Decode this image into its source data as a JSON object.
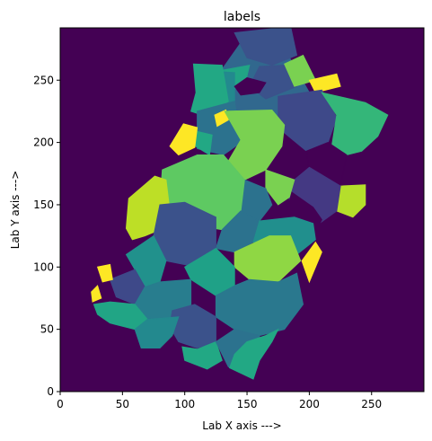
{
  "chart_data": {
    "type": "heatmap",
    "title": "labels",
    "xlabel": "Lab X axis --->",
    "ylabel": "Lab Y axis --->",
    "xlim": [
      0,
      292
    ],
    "ylim": [
      0,
      292
    ],
    "xticks": [
      0,
      50,
      100,
      150,
      200,
      250
    ],
    "yticks": [
      0,
      50,
      100,
      150,
      200,
      250
    ],
    "colormap": "viridis",
    "background_color": "#440154",
    "regions": [
      {
        "color": "#31688e",
        "polygon": [
          [
            121,
            246
          ],
          [
            150,
            287
          ],
          [
            183,
            270
          ],
          [
            200,
            240
          ],
          [
            175,
            205
          ],
          [
            140,
            200
          ]
        ]
      },
      {
        "color": "#3b528b",
        "polygon": [
          [
            140,
            288
          ],
          [
            185,
            293
          ],
          [
            190,
            270
          ],
          [
            170,
            262
          ],
          [
            150,
            268
          ]
        ]
      },
      {
        "color": "#21a585",
        "polygon": [
          [
            130,
            258
          ],
          [
            152,
            262
          ],
          [
            148,
            245
          ],
          [
            128,
            240
          ]
        ]
      },
      {
        "color": "#23898e",
        "polygon": [
          [
            112,
            258
          ],
          [
            140,
            256
          ],
          [
            140,
            230
          ],
          [
            122,
            228
          ],
          [
            112,
            240
          ]
        ]
      },
      {
        "color": "#22a884",
        "polygon": [
          [
            107,
            263
          ],
          [
            130,
            262
          ],
          [
            135,
            233
          ],
          [
            120,
            220
          ],
          [
            105,
            225
          ],
          [
            109,
            240
          ]
        ]
      },
      {
        "color": "#3b528b",
        "polygon": [
          [
            160,
            261
          ],
          [
            180,
            262
          ],
          [
            190,
            245
          ],
          [
            165,
            235
          ],
          [
            152,
            245
          ]
        ]
      },
      {
        "color": "#7ad151",
        "polygon": [
          [
            180,
            263
          ],
          [
            195,
            270
          ],
          [
            205,
            250
          ],
          [
            188,
            245
          ]
        ]
      },
      {
        "color": "#fde725",
        "polygon": [
          [
            200,
            250
          ],
          [
            222,
            255
          ],
          [
            225,
            245
          ],
          [
            205,
            240
          ]
        ]
      },
      {
        "color": "#3e4989",
        "polygon": [
          [
            175,
            237
          ],
          [
            210,
            242
          ],
          [
            222,
            220
          ],
          [
            215,
            200
          ],
          [
            195,
            192
          ],
          [
            175,
            205
          ]
        ]
      },
      {
        "color": "#34b679",
        "polygon": [
          [
            210,
            240
          ],
          [
            245,
            232
          ],
          [
            263,
            222
          ],
          [
            255,
            205
          ],
          [
            242,
            193
          ],
          [
            230,
            190
          ],
          [
            218,
            197
          ],
          [
            222,
            222
          ]
        ]
      },
      {
        "color": "#440154",
        "polygon": [
          [
            195,
            192
          ],
          [
            215,
            200
          ],
          [
            230,
            190
          ],
          [
            225,
            165
          ],
          [
            208,
            170
          ],
          [
            200,
            180
          ]
        ]
      },
      {
        "color": "#440154",
        "polygon": [
          [
            170,
            215
          ],
          [
            198,
            192
          ],
          [
            200,
            175
          ],
          [
            178,
            168
          ],
          [
            165,
            178
          ],
          [
            160,
            200
          ]
        ]
      },
      {
        "color": "#2c728e",
        "polygon": [
          [
            110,
            225
          ],
          [
            140,
            233
          ],
          [
            145,
            200
          ],
          [
            131,
            190
          ],
          [
            110,
            195
          ]
        ]
      },
      {
        "color": "#22a884",
        "polygon": [
          [
            105,
            210
          ],
          [
            122,
            206
          ],
          [
            120,
            190
          ],
          [
            107,
            198
          ]
        ]
      },
      {
        "color": "#fde725",
        "polygon": [
          [
            99,
            215
          ],
          [
            110,
            212
          ],
          [
            108,
            196
          ],
          [
            95,
            190
          ],
          [
            88,
            197
          ]
        ]
      },
      {
        "color": "#fde725",
        "polygon": [
          [
            124,
            222
          ],
          [
            133,
            226
          ],
          [
            135,
            218
          ],
          [
            126,
            213
          ]
        ]
      },
      {
        "color": "#7ad151",
        "polygon": [
          [
            132,
            225
          ],
          [
            170,
            226
          ],
          [
            180,
            214
          ],
          [
            178,
            197
          ],
          [
            165,
            178
          ],
          [
            148,
            170
          ],
          [
            135,
            185
          ],
          [
            145,
            202
          ]
        ]
      },
      {
        "color": "#b5de2b",
        "polygon": [
          [
            225,
            165
          ],
          [
            245,
            166
          ],
          [
            245,
            150
          ],
          [
            235,
            140
          ],
          [
            222,
            145
          ]
        ]
      },
      {
        "color": "#443983",
        "polygon": [
          [
            200,
            180
          ],
          [
            225,
            165
          ],
          [
            222,
            145
          ],
          [
            208,
            135
          ],
          [
            188,
            140
          ],
          [
            183,
            158
          ],
          [
            188,
            170
          ]
        ]
      },
      {
        "color": "#7ad151",
        "polygon": [
          [
            165,
            178
          ],
          [
            188,
            170
          ],
          [
            184,
            156
          ],
          [
            175,
            150
          ],
          [
            165,
            163
          ]
        ]
      },
      {
        "color": "#2c728e",
        "polygon": [
          [
            148,
            170
          ],
          [
            165,
            163
          ],
          [
            170,
            150
          ],
          [
            160,
            137
          ],
          [
            145,
            145
          ]
        ]
      },
      {
        "color": "#5ec962",
        "polygon": [
          [
            110,
            190
          ],
          [
            131,
            190
          ],
          [
            148,
            170
          ],
          [
            145,
            145
          ],
          [
            130,
            130
          ],
          [
            100,
            135
          ],
          [
            80,
            150
          ],
          [
            82,
            178
          ]
        ]
      },
      {
        "color": "#bddf26",
        "polygon": [
          [
            76,
            173
          ],
          [
            85,
            170
          ],
          [
            88,
            145
          ],
          [
            80,
            130
          ],
          [
            68,
            125
          ],
          [
            58,
            122
          ],
          [
            53,
            131
          ],
          [
            55,
            155
          ]
        ]
      },
      {
        "color": "#2c728e",
        "polygon": [
          [
            130,
            130
          ],
          [
            145,
            145
          ],
          [
            160,
            137
          ],
          [
            155,
            120
          ],
          [
            140,
            112
          ],
          [
            125,
            115
          ]
        ]
      },
      {
        "color": "#440154",
        "polygon": [
          [
            186,
            160
          ],
          [
            203,
            148
          ],
          [
            210,
            138
          ],
          [
            205,
            128
          ],
          [
            188,
            128
          ],
          [
            180,
            138
          ]
        ]
      },
      {
        "color": "#218f8d",
        "polygon": [
          [
            160,
            137
          ],
          [
            188,
            140
          ],
          [
            203,
            135
          ],
          [
            205,
            122
          ],
          [
            190,
            110
          ],
          [
            170,
            110
          ],
          [
            155,
            120
          ]
        ]
      },
      {
        "color": "#3b528b",
        "polygon": [
          [
            80,
            150
          ],
          [
            100,
            152
          ],
          [
            125,
            140
          ],
          [
            125,
            115
          ],
          [
            110,
            100
          ],
          [
            85,
            105
          ],
          [
            75,
            125
          ]
        ]
      },
      {
        "color": "#21918c",
        "polygon": [
          [
            75,
            125
          ],
          [
            85,
            105
          ],
          [
            80,
            88
          ],
          [
            68,
            84
          ],
          [
            60,
            98
          ],
          [
            53,
            110
          ]
        ]
      },
      {
        "color": "#8fd744",
        "polygon": [
          [
            140,
            112
          ],
          [
            168,
            125
          ],
          [
            185,
            125
          ],
          [
            193,
            105
          ],
          [
            175,
            88
          ],
          [
            152,
            90
          ],
          [
            140,
            100
          ]
        ]
      },
      {
        "color": "#fde725",
        "polygon": [
          [
            194,
            105
          ],
          [
            205,
            120
          ],
          [
            210,
            112
          ],
          [
            200,
            88
          ]
        ]
      },
      {
        "color": "#1fa187",
        "polygon": [
          [
            100,
            100
          ],
          [
            125,
            115
          ],
          [
            140,
            100
          ],
          [
            140,
            85
          ],
          [
            125,
            77
          ],
          [
            105,
            90
          ]
        ]
      },
      {
        "color": "#2a788e",
        "polygon": [
          [
            125,
            77
          ],
          [
            140,
            85
          ],
          [
            152,
            90
          ],
          [
            175,
            88
          ],
          [
            190,
            95
          ],
          [
            195,
            70
          ],
          [
            180,
            50
          ],
          [
            160,
            45
          ],
          [
            140,
            50
          ],
          [
            125,
            60
          ]
        ]
      },
      {
        "color": "#3e4989",
        "polygon": [
          [
            40,
            90
          ],
          [
            60,
            98
          ],
          [
            68,
            84
          ],
          [
            60,
            70
          ],
          [
            45,
            76
          ]
        ]
      },
      {
        "color": "#287d8e",
        "polygon": [
          [
            60,
            70
          ],
          [
            68,
            84
          ],
          [
            80,
            88
          ],
          [
            105,
            90
          ],
          [
            105,
            70
          ],
          [
            95,
            60
          ],
          [
            70,
            58
          ]
        ]
      },
      {
        "color": "#fde725",
        "polygon": [
          [
            30,
            100
          ],
          [
            40,
            102
          ],
          [
            42,
            90
          ],
          [
            34,
            88
          ]
        ]
      },
      {
        "color": "#fde725",
        "polygon": [
          [
            26,
            72
          ],
          [
            33,
            75
          ],
          [
            30,
            85
          ],
          [
            25,
            80
          ]
        ]
      },
      {
        "color": "#21a585",
        "polygon": [
          [
            27,
            70
          ],
          [
            40,
            72
          ],
          [
            60,
            70
          ],
          [
            70,
            58
          ],
          [
            60,
            50
          ],
          [
            40,
            55
          ],
          [
            30,
            62
          ]
        ]
      },
      {
        "color": "#3b528b",
        "polygon": [
          [
            90,
            65
          ],
          [
            108,
            70
          ],
          [
            125,
            60
          ],
          [
            125,
            40
          ],
          [
            110,
            35
          ],
          [
            95,
            40
          ],
          [
            88,
            52
          ]
        ]
      },
      {
        "color": "#23898e",
        "polygon": [
          [
            70,
            58
          ],
          [
            95,
            60
          ],
          [
            90,
            45
          ],
          [
            80,
            35
          ],
          [
            65,
            35
          ],
          [
            60,
            50
          ]
        ]
      },
      {
        "color": "#22a884",
        "polygon": [
          [
            98,
            36
          ],
          [
            110,
            34
          ],
          [
            125,
            40
          ],
          [
            130,
            25
          ],
          [
            118,
            18
          ],
          [
            100,
            25
          ]
        ]
      },
      {
        "color": "#2c728e",
        "polygon": [
          [
            125,
            40
          ],
          [
            140,
            50
          ],
          [
            160,
            45
          ],
          [
            160,
            25
          ],
          [
            145,
            15
          ],
          [
            135,
            20
          ],
          [
            130,
            30
          ]
        ]
      },
      {
        "color": "#22a884",
        "polygon": [
          [
            136,
            19
          ],
          [
            155,
            10
          ],
          [
            160,
            25
          ],
          [
            170,
            40
          ],
          [
            175,
            50
          ],
          [
            165,
            45
          ],
          [
            150,
            40
          ],
          [
            140,
            30
          ]
        ]
      },
      {
        "color": "#440154",
        "polygon": [
          [
            140,
            245
          ],
          [
            145,
            238
          ],
          [
            160,
            240
          ],
          [
            165,
            248
          ],
          [
            150,
            252
          ]
        ]
      }
    ]
  }
}
